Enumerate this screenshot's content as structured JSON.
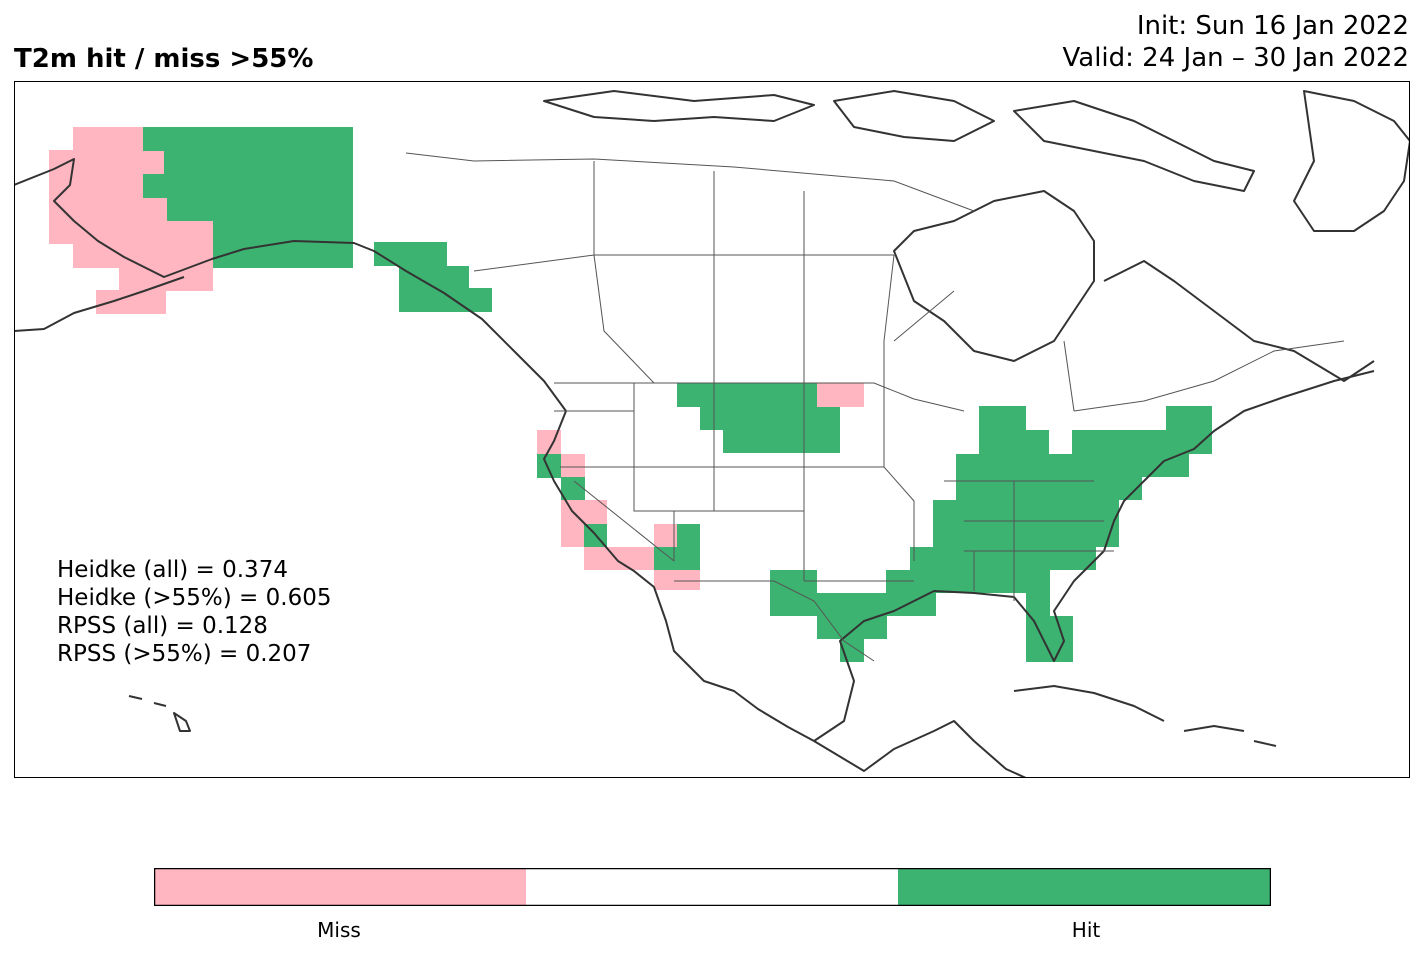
{
  "title": "T2m hit / miss  >55%",
  "init_line": "Init: Sun 16 Jan 2022",
  "valid_line": "Valid: 24 Jan – 30 Jan 2022",
  "stats": {
    "heidke_all": "Heidke (all) = 0.374",
    "heidke_55": "Heidke (>55%) = 0.605",
    "rpss_all": "RPSS (all) = 0.128",
    "rpss_55": "RPSS (>55%) = 0.207"
  },
  "colors": {
    "hit": "#3cb371",
    "miss": "#ffb6c1",
    "neutral": "#ffffff",
    "coast": "#333333",
    "border": "#555555"
  },
  "colorbar": {
    "miss_label": "Miss",
    "hit_label": "Hit"
  },
  "region": "North America"
}
